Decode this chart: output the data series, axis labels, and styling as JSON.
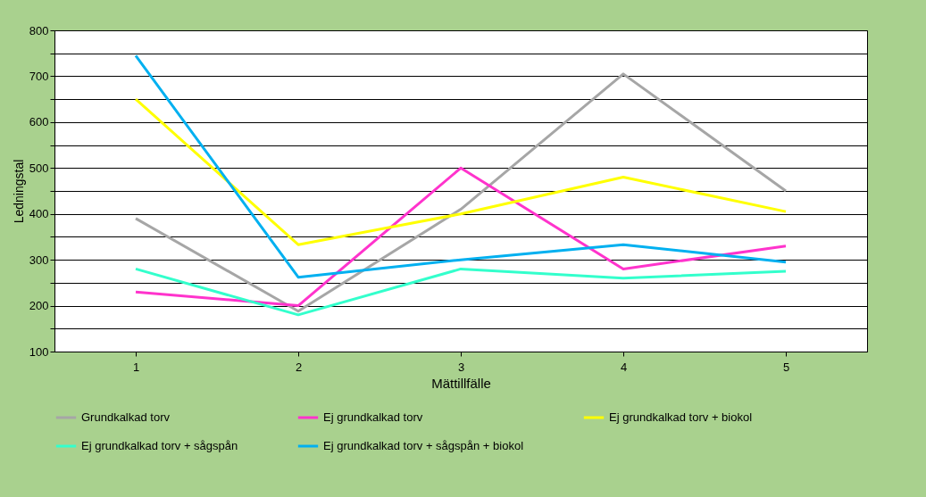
{
  "chart_data": {
    "type": "line",
    "xlabel": "Mättillfälle",
    "ylabel": "Ledningstal",
    "categories": [
      "1",
      "2",
      "3",
      "4",
      "5"
    ],
    "ylim": [
      100,
      800
    ],
    "yticks": [
      100,
      {
        "value": 150,
        "label": null
      },
      200,
      {
        "value": 250,
        "label": null
      },
      300,
      {
        "value": 350,
        "label": null
      },
      400,
      {
        "value": 450,
        "label": null
      },
      500,
      {
        "value": 550,
        "label": null
      },
      600,
      {
        "value": 650,
        "label": null
      },
      700,
      {
        "value": 750,
        "label": null
      },
      800
    ],
    "grid": "y",
    "legend": "bottom",
    "marker": "none",
    "line_style": "solid",
    "series": [
      {
        "name": "Grundkalkad torv",
        "color": "#a6a6a6",
        "values": [
          390,
          188,
          410,
          705,
          450
        ]
      },
      {
        "name": "Ej grundkalkad torv",
        "color": "#ff33cc",
        "values": [
          230,
          200,
          500,
          280,
          330
        ]
      },
      {
        "name": "Ej grundkalkad torv + biokol",
        "color": "#ffff00",
        "values": [
          650,
          333,
          400,
          480,
          405
        ]
      },
      {
        "name": "Ej grundkalkad torv + sågspån",
        "color": "#33ffcc",
        "values": [
          280,
          180,
          280,
          260,
          275
        ]
      },
      {
        "name": "Ej grundkalkad torv + sågspån + biokol",
        "color": "#00b0f0",
        "values": [
          745,
          262,
          300,
          333,
          295
        ]
      }
    ]
  }
}
